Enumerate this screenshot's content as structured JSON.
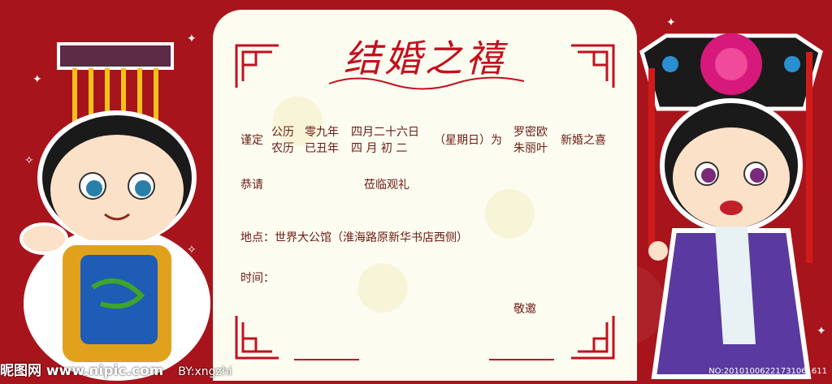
{
  "title": "结婚之禧",
  "invite": {
    "prefix": "谨定",
    "cal_solar": "公历",
    "cal_lunar": "农历",
    "year_solar": "零九年",
    "year_lunar": "已丑年",
    "date_solar": "四月二十六日",
    "date_lunar": "四 月 初 二",
    "weekday": "（星期日）为",
    "groom": "罗密欧",
    "bride": "朱丽叶",
    "occasion": "新婚之喜",
    "respect": "恭请",
    "attend": "莅临观礼",
    "location": "地点：世界大公馆（淮海路原新华书店西侧）",
    "time": "时间：",
    "sign": "敬邀"
  },
  "watermark": "昵图网 www.nipic.com",
  "author": "BY:xngzhi",
  "image_id": "NO:20101006221731061611",
  "colors": {
    "background": "#a8141c",
    "card": "#fdfcf0",
    "accent": "#c3101e",
    "text": "#6a1a12"
  },
  "icons": [
    "emperor-cartoon",
    "empress-cartoon",
    "corner-ornament",
    "sparkle-star"
  ]
}
